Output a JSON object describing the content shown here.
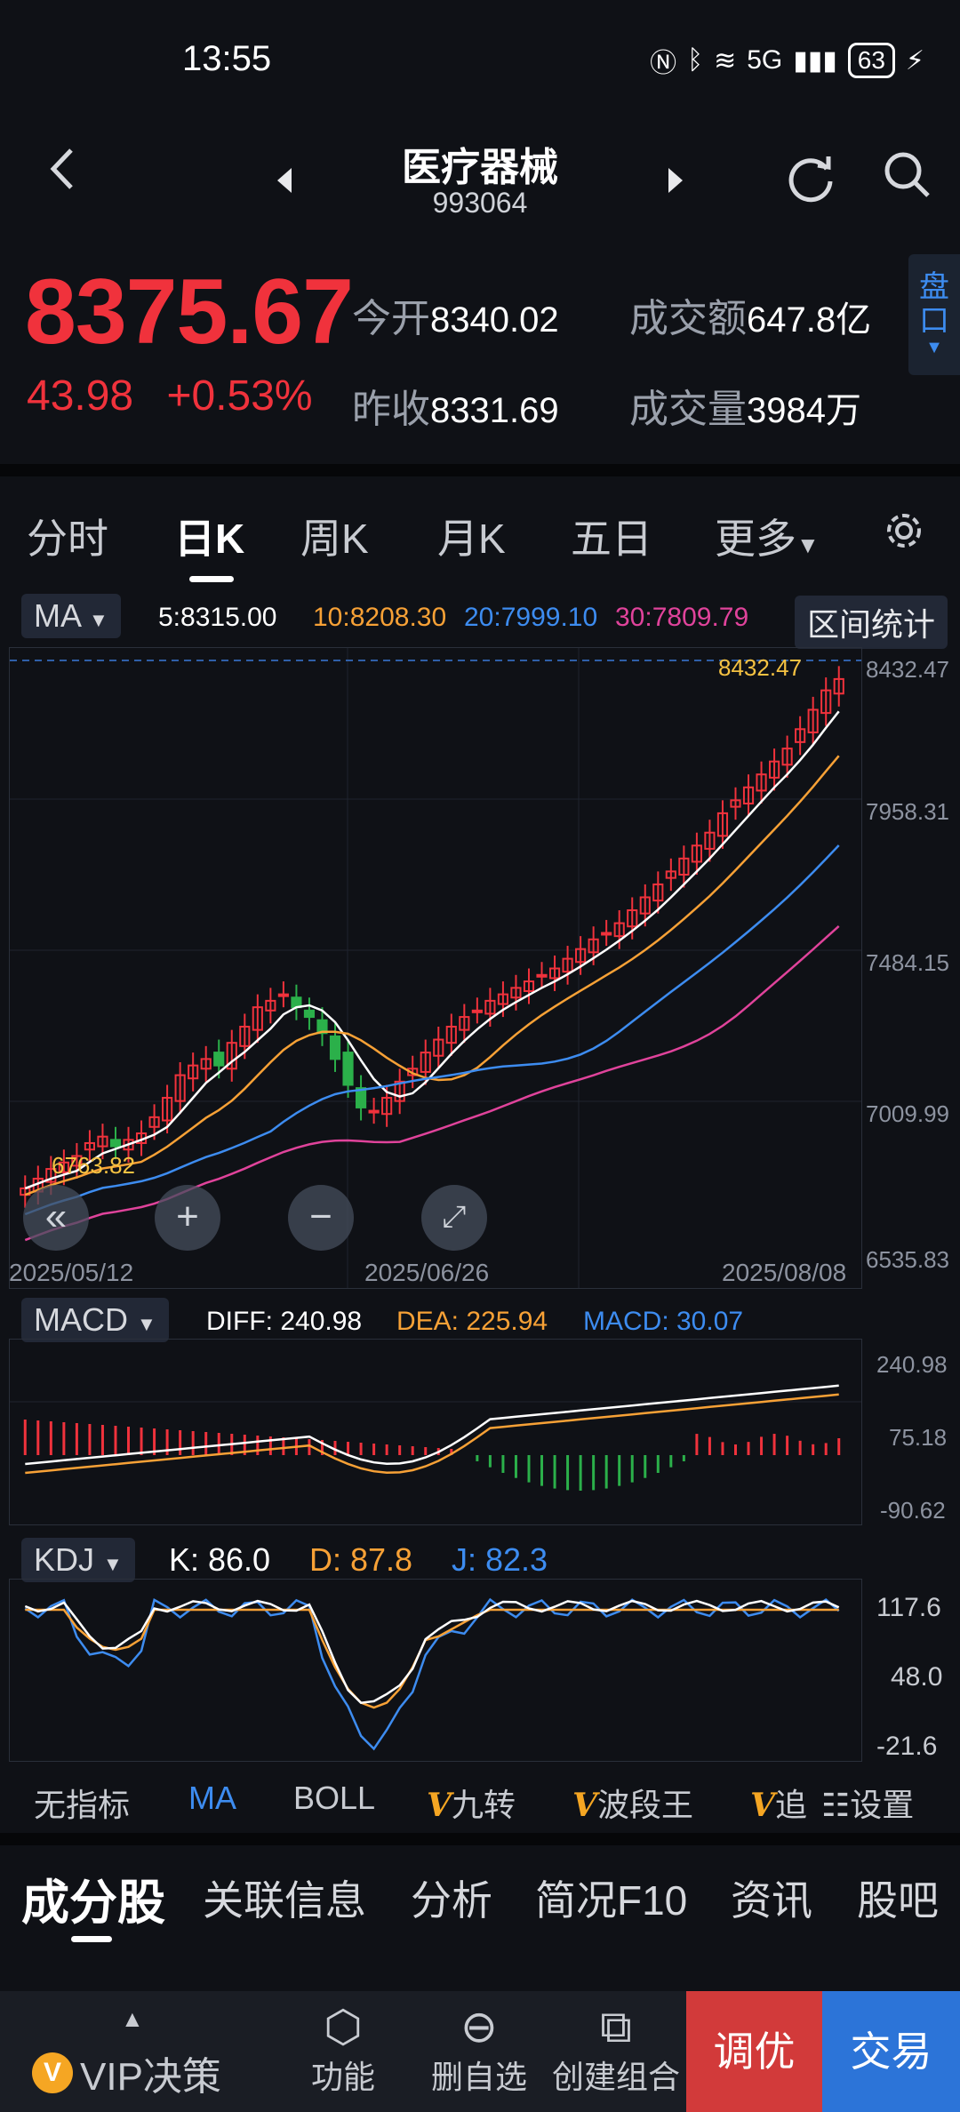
{
  "status": {
    "time": "13:55",
    "battery": "63",
    "network": "5G"
  },
  "header": {
    "title": "医疗器械",
    "code": "993064"
  },
  "quote": {
    "price": "8375.67",
    "change": "43.98",
    "change_pct": "+0.53%",
    "open_label": "今开",
    "open": "8340.02",
    "prev_label": "昨收",
    "prev": "8331.69",
    "amount_label": "成交额",
    "amount": "647.8亿",
    "volume_label": "成交量",
    "volume": "3984万",
    "pankou": "盘口"
  },
  "period_tabs": [
    "分时",
    "日K",
    "周K",
    "月K",
    "五日",
    "更多"
  ],
  "ma_bar": {
    "select": "MA",
    "ma5": "5:8315.00",
    "ma10": "10:8208.30",
    "ma20": "20:7999.10",
    "ma30": "30:7809.79",
    "range_btn": "区间统计"
  },
  "kline": {
    "y_labels": [
      "8432.47",
      "7958.31",
      "7484.15",
      "7009.99",
      "6535.83"
    ],
    "x_labels": [
      "2025/05/12",
      "2025/06/26",
      "2025/08/08"
    ],
    "high_marker": "8432.47",
    "low_marker": "6763.82"
  },
  "macd": {
    "select": "MACD",
    "diff": "DIFF: 240.98",
    "dea": "DEA: 225.94",
    "macd": "MACD: 30.07",
    "y_labels": [
      "240.98",
      "75.18",
      "-90.62"
    ]
  },
  "kdj": {
    "select": "KDJ",
    "k": "K: 86.0",
    "d": "D: 87.8",
    "j": "J: 82.3",
    "y_labels": [
      "117.6",
      "48.0",
      "-21.6"
    ]
  },
  "indicator_row": [
    "无指标",
    "MA",
    "BOLL",
    "九转",
    "波段王",
    "追",
    "设置"
  ],
  "bottom_tabs": [
    "成分股",
    "关联信息",
    "分析",
    "简况F10",
    "资讯",
    "股吧"
  ],
  "bottom_bar": {
    "vip": "VIP决策",
    "func": "功能",
    "del": "删自选",
    "combo": "创建组合",
    "tiaoyou": "调优",
    "trade": "交易"
  },
  "colors": {
    "up": "#f0323c",
    "down": "#2bb04a",
    "ma5": "#ffffff",
    "ma10": "#f7a136",
    "ma20": "#3d8cf0",
    "ma30": "#e0439b"
  }
}
